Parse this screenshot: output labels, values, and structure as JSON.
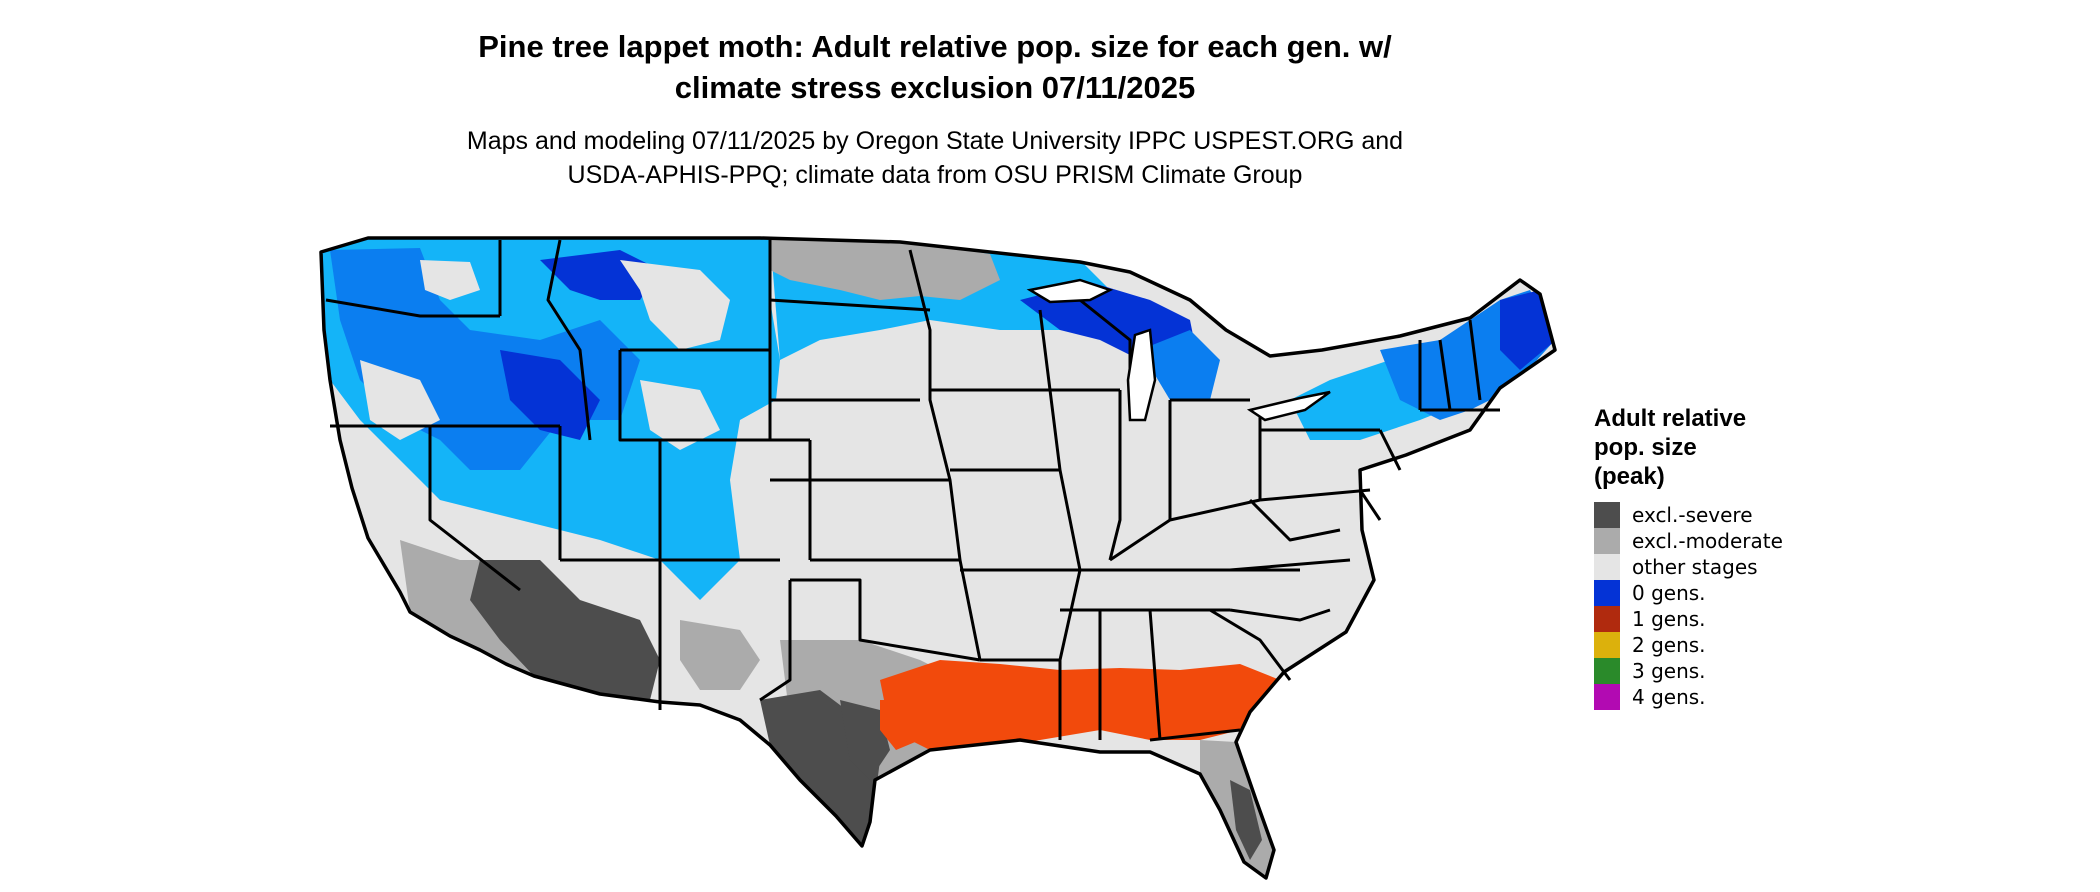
{
  "title": {
    "line1": "Pine tree lappet moth: Adult relative pop. size for each gen. w/",
    "line2": "climate stress exclusion 07/11/2025"
  },
  "subtitle": {
    "line1": "Maps and modeling 07/11/2025 by Oregon State University IPPC USPEST.ORG and",
    "line2": "USDA-APHIS-PPQ; climate data from OSU PRISM Climate Group"
  },
  "legend": {
    "title_line1": "Adult relative",
    "title_line2": "pop. size",
    "title_line3": "(peak)",
    "items": [
      {
        "label": "excl.-severe",
        "color": "#4d4d4d"
      },
      {
        "label": "excl.-moderate",
        "color": "#ababab"
      },
      {
        "label": "other stages",
        "color": "#e5e5e5"
      },
      {
        "label": "0 gens.",
        "color": "#0433d6"
      },
      {
        "label": "1 gens.",
        "color": "#b02a0e"
      },
      {
        "label": "2 gens.",
        "color": "#dcb10c"
      },
      {
        "label": "3 gens.",
        "color": "#2a8a2a"
      },
      {
        "label": "4 gens.",
        "color": "#b20ab2"
      }
    ]
  },
  "map_colors": {
    "other_stages": "#e5e5e5",
    "excl_moderate": "#ababab",
    "excl_severe": "#4d4d4d",
    "zero_gens_light": "#14b4f8",
    "zero_gens_mid": "#0b7ef0",
    "zero_gens_dark": "#0433d6",
    "one_gen_high": "#f24a0c",
    "border": "#000000"
  }
}
